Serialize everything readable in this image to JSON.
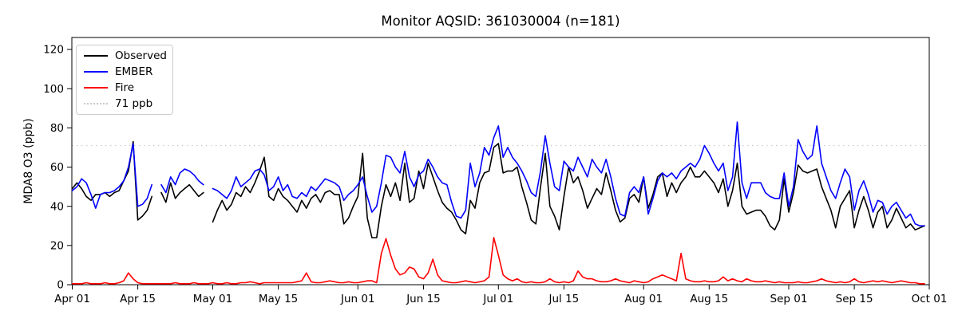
{
  "title": "Monitor AQSID: 361030004 (n=181)",
  "chart_data": {
    "type": "line",
    "title": "Monitor AQSID: 361030004 (n=181)",
    "monitor_aqsid": "361030004",
    "n": 181,
    "xlabel": "",
    "ylabel": "MDA8 O3 (ppb)",
    "ylim": [
      0,
      126
    ],
    "yticks": [
      0,
      20,
      40,
      60,
      80,
      100,
      120
    ],
    "grid": false,
    "legend_position": "upper left",
    "n_days": 183,
    "xticks": [
      {
        "label": "Apr 01",
        "day": 0
      },
      {
        "label": "Apr 15",
        "day": 14
      },
      {
        "label": "May 01",
        "day": 30
      },
      {
        "label": "May 15",
        "day": 44
      },
      {
        "label": "Jun 01",
        "day": 61
      },
      {
        "label": "Jun 15",
        "day": 75
      },
      {
        "label": "Jul 01",
        "day": 91
      },
      {
        "label": "Jul 15",
        "day": 105
      },
      {
        "label": "Aug 01",
        "day": 122
      },
      {
        "label": "Aug 15",
        "day": 136
      },
      {
        "label": "Sep 01",
        "day": 153
      },
      {
        "label": "Sep 15",
        "day": 167
      },
      {
        "label": "Oct 01",
        "day": 183
      }
    ],
    "threshold": {
      "label": "71 ppb",
      "value": 71,
      "color": "#c9c9c9",
      "style": "dotted"
    },
    "series": [
      {
        "name": "Observed",
        "color": "#000000",
        "values": [
          49,
          52,
          49,
          45,
          43,
          46,
          46,
          47,
          45,
          47,
          48,
          53,
          58,
          73,
          33,
          35,
          38,
          45,
          null,
          47,
          42,
          52,
          44,
          47,
          49,
          51,
          48,
          45,
          47,
          null,
          32,
          38,
          43,
          38,
          41,
          47,
          45,
          50,
          47,
          52,
          58,
          65,
          45,
          43,
          49,
          45,
          43,
          40,
          37,
          43,
          39,
          44,
          46,
          42,
          47,
          48,
          46,
          46,
          31,
          34,
          40,
          45,
          67,
          34,
          24,
          24,
          40,
          51,
          45,
          52,
          43,
          62,
          42,
          44,
          58,
          49,
          62,
          55,
          48,
          42,
          39,
          37,
          33,
          28,
          26,
          43,
          39,
          52,
          57,
          58,
          70,
          72,
          57,
          58,
          58,
          60,
          50,
          42,
          33,
          31,
          50,
          67,
          40,
          35,
          28,
          45,
          60,
          52,
          55,
          48,
          39,
          44,
          49,
          46,
          57,
          48,
          38,
          32,
          34,
          44,
          46,
          42,
          55,
          39,
          46,
          55,
          57,
          45,
          52,
          47,
          52,
          55,
          60,
          55,
          55,
          58,
          55,
          52,
          47,
          54,
          40,
          48,
          62,
          40,
          36,
          37,
          38,
          38,
          35,
          30,
          28,
          33,
          54,
          37,
          47,
          61,
          58,
          57,
          58,
          59,
          50,
          44,
          38,
          29,
          40,
          44,
          48,
          29,
          38,
          45,
          38,
          29,
          37,
          40,
          29,
          33,
          39,
          34,
          29,
          31,
          28,
          29,
          30
        ]
      },
      {
        "name": "EMBER",
        "color": "#0000ff",
        "values": [
          48,
          50,
          54,
          52,
          46,
          39,
          46,
          47,
          47,
          48,
          50,
          53,
          60,
          72,
          40,
          41,
          44,
          51,
          null,
          51,
          47,
          55,
          51,
          57,
          59,
          58,
          56,
          53,
          51,
          null,
          49,
          48,
          46,
          44,
          48,
          55,
          50,
          52,
          54,
          58,
          59,
          56,
          48,
          50,
          55,
          48,
          51,
          45,
          44,
          47,
          45,
          50,
          48,
          51,
          54,
          53,
          52,
          50,
          43,
          46,
          48,
          51,
          55,
          45,
          37,
          40,
          52,
          66,
          65,
          60,
          57,
          68,
          55,
          50,
          56,
          58,
          64,
          60,
          55,
          52,
          51,
          42,
          35,
          34,
          38,
          62,
          50,
          57,
          70,
          66,
          75,
          81,
          65,
          70,
          65,
          62,
          58,
          53,
          47,
          45,
          58,
          76,
          62,
          50,
          48,
          63,
          60,
          58,
          65,
          60,
          55,
          64,
          60,
          57,
          64,
          55,
          44,
          36,
          35,
          47,
          50,
          47,
          55,
          36,
          44,
          53,
          57,
          55,
          57,
          54,
          58,
          60,
          62,
          60,
          64,
          71,
          67,
          62,
          58,
          62,
          48,
          55,
          83,
          52,
          44,
          52,
          52,
          52,
          47,
          45,
          44,
          44,
          57,
          40,
          50,
          74,
          68,
          64,
          66,
          81,
          62,
          55,
          48,
          44,
          52,
          59,
          55,
          38,
          48,
          53,
          46,
          37,
          43,
          42,
          36,
          40,
          42,
          38,
          34,
          36,
          31,
          30,
          30
        ]
      },
      {
        "name": "Fire",
        "color": "#ff0000",
        "values": [
          0.5,
          0.5,
          0.5,
          1,
          0.5,
          0.5,
          0.5,
          1,
          0.5,
          0.5,
          1,
          2,
          6,
          3,
          1,
          0.5,
          0.5,
          0.5,
          0.5,
          0.5,
          0.5,
          0.5,
          1,
          0.5,
          0.5,
          0.5,
          1,
          0.5,
          0.5,
          0.5,
          1,
          0.5,
          0.5,
          1,
          0.5,
          0.5,
          1,
          1,
          1.5,
          1,
          0.5,
          1,
          1,
          1,
          1,
          1,
          1,
          1,
          1.5,
          2,
          6,
          1.5,
          1,
          1,
          1.5,
          2,
          1.5,
          1,
          1,
          1.5,
          1,
          1,
          1.5,
          2,
          2,
          1,
          16,
          23.5,
          15,
          8,
          5,
          6,
          9,
          8,
          4,
          3,
          6,
          13,
          5,
          2,
          1.5,
          1,
          1,
          1.5,
          2,
          1.5,
          1,
          1.5,
          2,
          4,
          24,
          15,
          5,
          3,
          2,
          3,
          1.5,
          1,
          1.5,
          1,
          1,
          1.5,
          3,
          1.5,
          1,
          1.5,
          1,
          2,
          7,
          4,
          3,
          3,
          2,
          1.5,
          1.5,
          2,
          3,
          2,
          1.5,
          1,
          2,
          1.5,
          1,
          1.5,
          3,
          4,
          5,
          4,
          3,
          2,
          16,
          3,
          2,
          1.5,
          1.5,
          2,
          1.5,
          1.5,
          2,
          4,
          2,
          3,
          2,
          1.5,
          3,
          2,
          1.5,
          1.5,
          2,
          1.5,
          1,
          1.5,
          1,
          1,
          1,
          1.5,
          1,
          1,
          1.5,
          2,
          3,
          2,
          1.5,
          1,
          1.5,
          1,
          1.5,
          3,
          1.5,
          1,
          1.5,
          2,
          1.5,
          2,
          1.5,
          1,
          1.5,
          2,
          1.5,
          1,
          1,
          0.5,
          0.5
        ]
      }
    ]
  }
}
